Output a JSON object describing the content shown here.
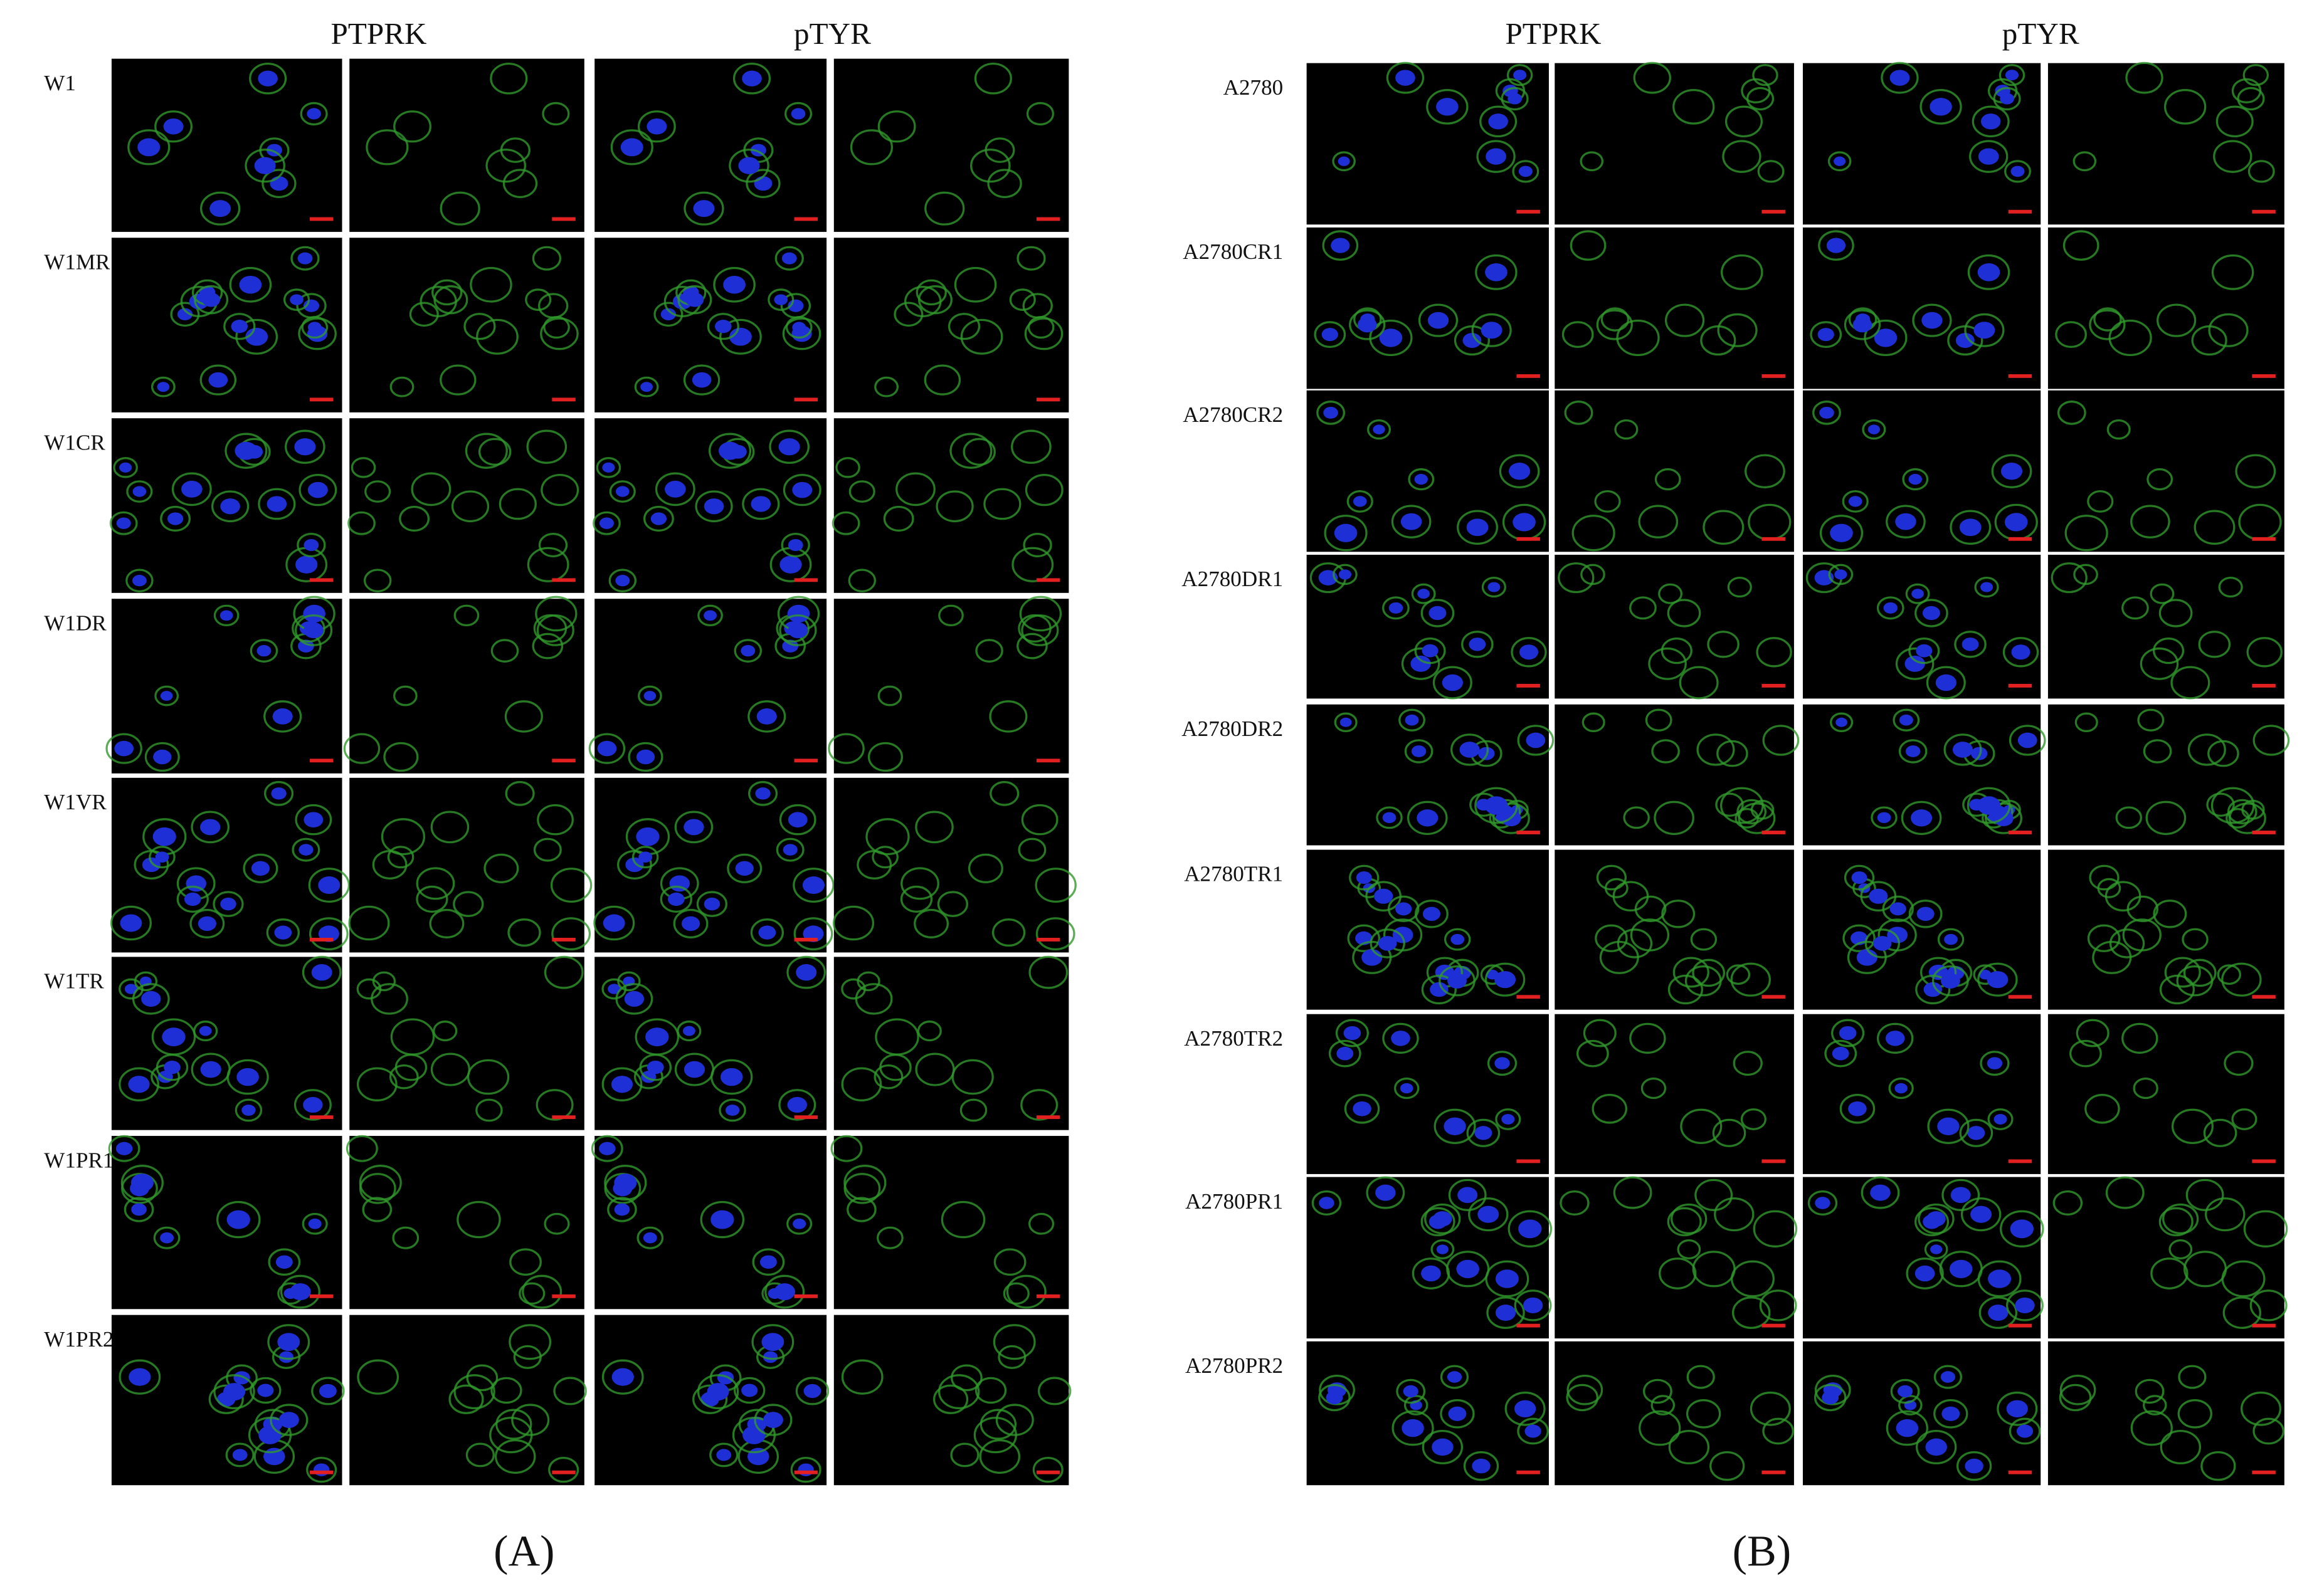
{
  "panels": [
    {
      "label": "(A)",
      "columns": [
        "PTPRK",
        "pTYR"
      ],
      "rows": [
        "W1",
        "W1MR",
        "W1CR",
        "W1DR",
        "W1VR",
        "W1TR",
        "W1PR1",
        "W1PR2"
      ]
    },
    {
      "label": "(B)",
      "columns": [
        "PTPRK",
        "pTYR"
      ],
      "rows": [
        "A2780",
        "A2780CR1",
        "A2780CR2",
        "A2780DR1",
        "A2780DR2",
        "A2780TR1",
        "A2780TR2",
        "A2780PR1",
        "A2780PR2"
      ]
    }
  ]
}
